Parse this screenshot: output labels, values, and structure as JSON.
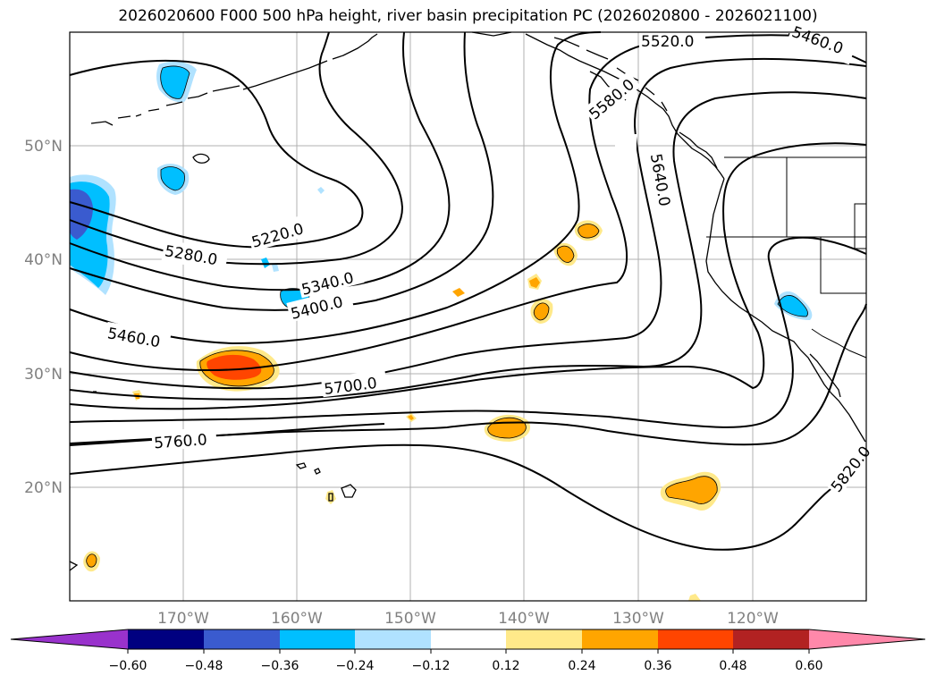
{
  "title": "2026020600 F000 500 hPa height, river basin precipitation PC (2026020800 - 2026021100)",
  "map": {
    "lat_labels": [
      "50°N",
      "40°N",
      "30°N",
      "20°N"
    ],
    "lon_labels": [
      "170°W",
      "160°W",
      "150°W",
      "140°W",
      "130°W",
      "120°W"
    ],
    "contour_labels": [
      "5520.0",
      "5460.0",
      "5580.0",
      "5640.0",
      "5220.0",
      "5280.0",
      "5340.0",
      "5400.0",
      "5460.0",
      "5700.0",
      "5760.0",
      "5820.0"
    ]
  },
  "colorbar": {
    "ticks": [
      "−0.60",
      "−0.48",
      "−0.36",
      "−0.24",
      "−0.12",
      "0.12",
      "0.24",
      "0.36",
      "0.48",
      "0.60"
    ],
    "colors": {
      "lt_min": "#9932cc",
      "n1": "#000080",
      "n2": "#3a5bcf",
      "n3": "#00bfff",
      "n4": "#b0e2ff",
      "mid": "#ffffff",
      "p1": "#ffe98a",
      "p2": "#ffa500",
      "p3": "#ff4500",
      "p4": "#b22222",
      "gt_max": "#ff88aa"
    }
  }
}
